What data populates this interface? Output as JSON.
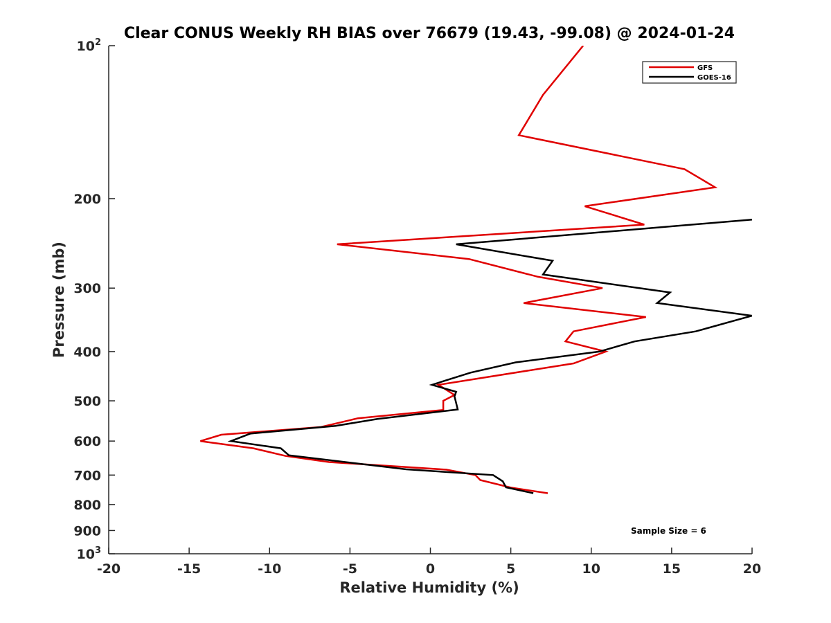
{
  "chart_data": {
    "type": "line",
    "title": "Clear CONUS Weekly RH BIAS over 76679 (19.43, -99.08) @ 2024-01-24",
    "xlabel": "Relative Humidity (%)",
    "ylabel": "Pressure (mb)",
    "xlim": [
      -20,
      20
    ],
    "ylim": [
      100,
      1000
    ],
    "y_scale": "log",
    "y_reversed": true,
    "grid": false,
    "legend_position": "top-right",
    "x_ticks": [
      -20,
      -15,
      -10,
      -5,
      0,
      5,
      10,
      15,
      20
    ],
    "x_tick_labels": [
      "-20",
      "-15",
      "-10",
      "-5",
      "0",
      "5",
      "10",
      "15",
      "20"
    ],
    "y_ticks": [
      100,
      200,
      300,
      400,
      500,
      600,
      700,
      800,
      900,
      1000
    ],
    "y_tick_labels": [
      "10²",
      "200",
      "300",
      "400",
      "500",
      "600",
      "700",
      "800",
      "900",
      "10³"
    ],
    "annotation": "Sample Size = 6",
    "series": [
      {
        "name": "GFS",
        "color": "#e00000",
        "points": [
          [
            9.5,
            100
          ],
          [
            7.0,
            125
          ],
          [
            5.5,
            150
          ],
          [
            15.8,
            175
          ],
          [
            17.7,
            190
          ],
          [
            9.6,
            207
          ],
          [
            13.3,
            225
          ],
          [
            -5.8,
            246
          ],
          [
            2.4,
            263
          ],
          [
            6.7,
            285
          ],
          [
            10.7,
            300
          ],
          [
            5.8,
            321
          ],
          [
            13.4,
            342
          ],
          [
            8.9,
            365
          ],
          [
            8.4,
            382
          ],
          [
            10.9,
            400
          ],
          [
            8.9,
            422
          ],
          [
            0.5,
            465
          ],
          [
            1.5,
            487
          ],
          [
            0.8,
            500
          ],
          [
            0.8,
            521
          ],
          [
            -4.5,
            541
          ],
          [
            -6.8,
            563
          ],
          [
            -13.0,
            583
          ],
          [
            -14.3,
            600
          ],
          [
            -11.0,
            620
          ],
          [
            -9.0,
            642
          ],
          [
            -6.3,
            660
          ],
          [
            1.0,
            683
          ],
          [
            2.8,
            700
          ],
          [
            3.1,
            716
          ],
          [
            5.0,
            741
          ],
          [
            7.3,
            760
          ]
        ]
      },
      {
        "name": "GOES-16",
        "color": "#000000",
        "points": [
          [
            20.0,
            220
          ],
          [
            1.6,
            246
          ],
          [
            7.6,
            265
          ],
          [
            7.0,
            282
          ],
          [
            14.9,
            306
          ],
          [
            14.1,
            321
          ],
          [
            20.0,
            340
          ],
          [
            16.5,
            365
          ],
          [
            12.7,
            382
          ],
          [
            10.5,
            400
          ],
          [
            5.3,
            420
          ],
          [
            2.5,
            440
          ],
          [
            0.1,
            465
          ],
          [
            1.6,
            480
          ],
          [
            1.5,
            490
          ],
          [
            1.7,
            520
          ],
          [
            -3.3,
            543
          ],
          [
            -5.9,
            560
          ],
          [
            -11.2,
            580
          ],
          [
            -12.4,
            600
          ],
          [
            -9.3,
            620
          ],
          [
            -8.8,
            640
          ],
          [
            -1.5,
            682
          ],
          [
            3.9,
            700
          ],
          [
            4.5,
            720
          ],
          [
            4.7,
            740
          ],
          [
            6.4,
            760
          ]
        ]
      }
    ]
  }
}
